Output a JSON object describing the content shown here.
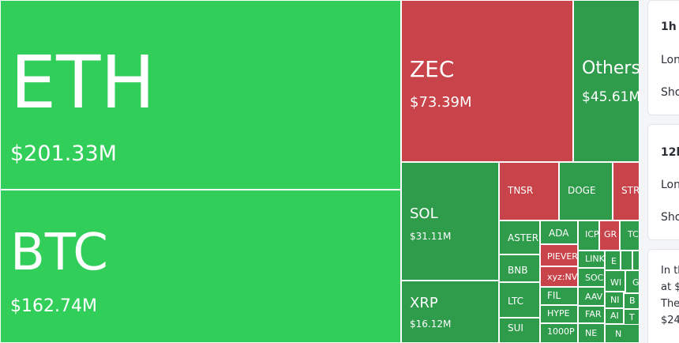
{
  "colors": {
    "green": "#32ce5a",
    "dark_green": "#2e9c4b",
    "red": "#c9434a"
  },
  "treemap": {
    "cells": [
      {
        "symbol": "ETH",
        "value": "$201.33M",
        "color": "green"
      },
      {
        "symbol": "BTC",
        "value": "$162.74M",
        "color": "green"
      },
      {
        "symbol": "ZEC",
        "value": "$73.39M",
        "color": "red"
      },
      {
        "symbol": "Others",
        "value": "$45.61M",
        "color": "dark_green"
      },
      {
        "symbol": "SOL",
        "value": "$31.11M",
        "color": "dark_green"
      },
      {
        "symbol": "XRP",
        "value": "$16.12M",
        "color": "dark_green"
      },
      {
        "symbol": "TNSR",
        "value": "",
        "color": "red"
      },
      {
        "symbol": "DOGE",
        "value": "",
        "color": "dark_green"
      },
      {
        "symbol": "STR",
        "value": "",
        "color": "red"
      },
      {
        "symbol": "ASTER",
        "value": "",
        "color": "dark_green"
      },
      {
        "symbol": "ADA",
        "value": "",
        "color": "dark_green"
      },
      {
        "symbol": "ICP",
        "value": "",
        "color": "dark_green"
      },
      {
        "symbol": "GR",
        "value": "",
        "color": "red"
      },
      {
        "symbol": "TC",
        "value": "",
        "color": "dark_green"
      },
      {
        "symbol": "BNB",
        "value": "",
        "color": "dark_green"
      },
      {
        "symbol": "PIEVER",
        "value": "",
        "color": "red"
      },
      {
        "symbol": "LINK",
        "value": "",
        "color": "dark_green"
      },
      {
        "symbol": "E",
        "value": "",
        "color": "dark_green"
      },
      {
        "symbol": "",
        "value": "",
        "color": "dark_green"
      },
      {
        "symbol": "",
        "value": "",
        "color": "dark_green"
      },
      {
        "symbol": "xyz:NV",
        "value": "",
        "color": "red"
      },
      {
        "symbol": "SOC",
        "value": "",
        "color": "dark_green"
      },
      {
        "symbol": "WI",
        "value": "",
        "color": "dark_green"
      },
      {
        "symbol": "G",
        "value": "",
        "color": "dark_green"
      },
      {
        "symbol": "LTC",
        "value": "",
        "color": "dark_green"
      },
      {
        "symbol": "FIL",
        "value": "",
        "color": "dark_green"
      },
      {
        "symbol": "AAV",
        "value": "",
        "color": "dark_green"
      },
      {
        "symbol": "NI",
        "value": "",
        "color": "dark_green"
      },
      {
        "symbol": "B",
        "value": "",
        "color": "dark_green"
      },
      {
        "symbol": "HYPE",
        "value": "",
        "color": "dark_green"
      },
      {
        "symbol": "FAR",
        "value": "",
        "color": "dark_green"
      },
      {
        "symbol": "AI",
        "value": "",
        "color": "dark_green"
      },
      {
        "symbol": "T",
        "value": "",
        "color": "dark_green"
      },
      {
        "symbol": "SUI",
        "value": "",
        "color": "dark_green"
      },
      {
        "symbol": "1000P",
        "value": "",
        "color": "dark_green"
      },
      {
        "symbol": "NE",
        "value": "",
        "color": "dark_green"
      },
      {
        "symbol": "N",
        "value": "",
        "color": "dark_green"
      }
    ]
  },
  "sidebar": {
    "card_1h": {
      "title": "1h",
      "long": "Lon",
      "short": "Sho"
    },
    "card_12h": {
      "title": "12h",
      "long": "Lon",
      "short": "Sho"
    },
    "summary": {
      "lines": [
        "In th",
        "at $",
        "The",
        "$24"
      ]
    }
  }
}
